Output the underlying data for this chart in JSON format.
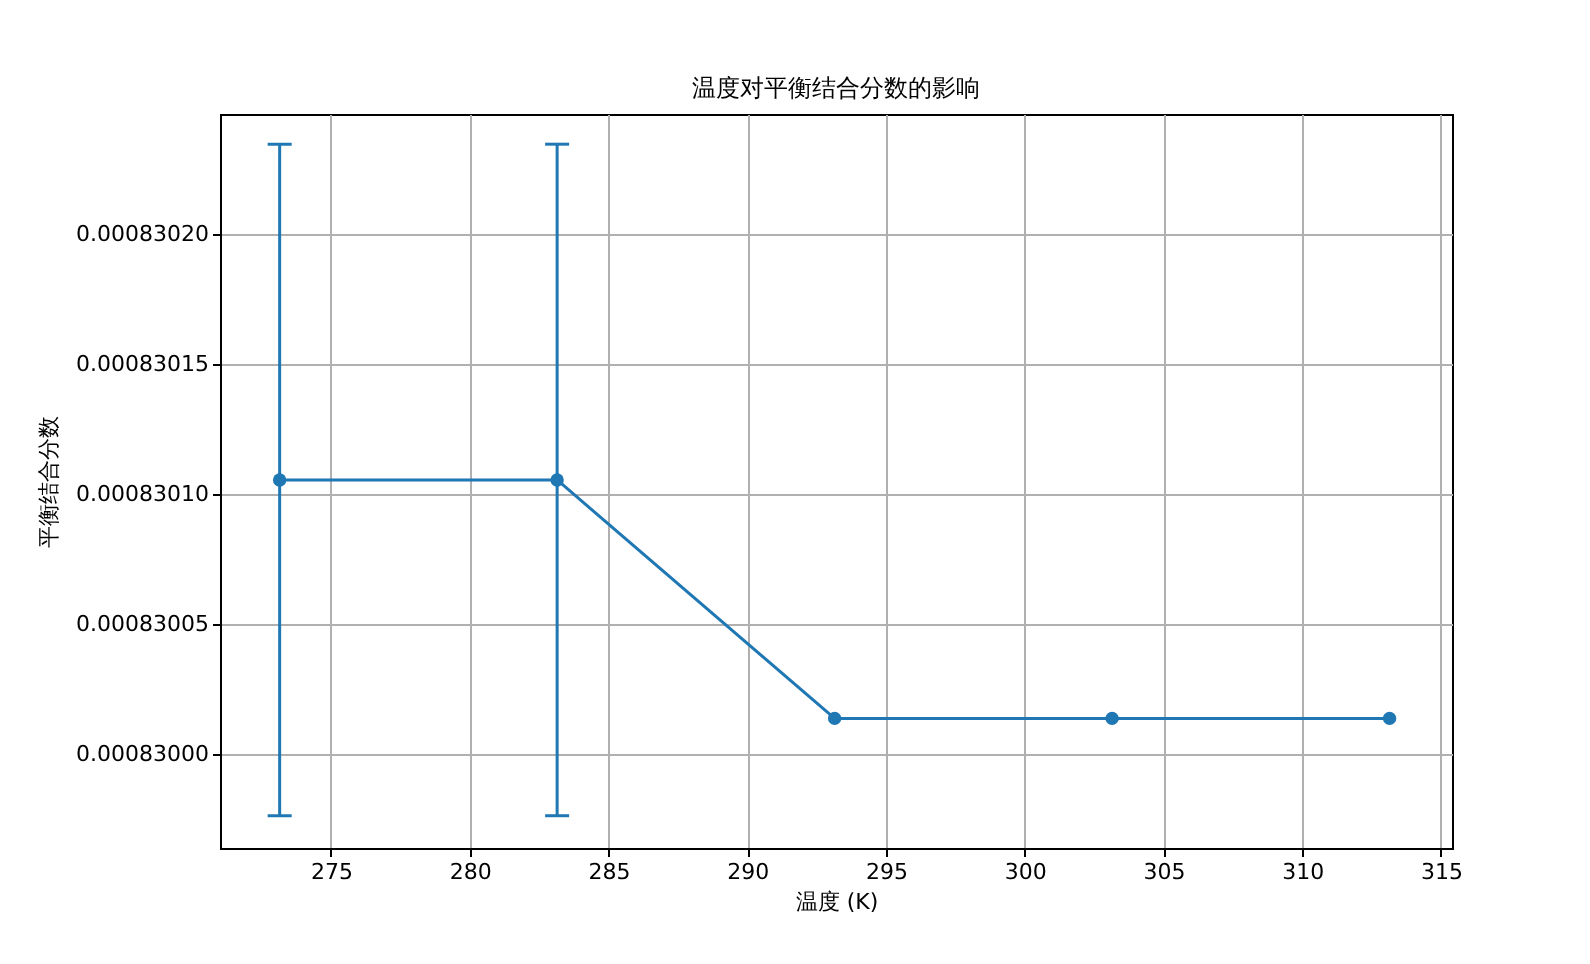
{
  "chart_data": {
    "type": "line",
    "title": "温度对平衡结合分数的影响",
    "xlabel": "温度 (K)",
    "ylabel": "平衡结合分数",
    "x": [
      273.15,
      283.15,
      293.15,
      303.15,
      313.15
    ],
    "series": [
      {
        "color": "#1f77b4",
        "values": [
          0.0008301054,
          0.0008301054,
          0.0008300138,
          0.0008300138,
          0.0008300138
        ],
        "errors": [
          1.29e-07,
          1.29e-07,
          null,
          null,
          null
        ]
      }
    ],
    "xlim": [
      271.0,
      315.4
    ],
    "xticks": [
      275,
      280,
      285,
      290,
      295,
      300,
      305,
      310,
      315
    ],
    "ylim": [
      0.000829964,
      0.000830246
    ],
    "yticks": [
      {
        "value": 0.00083,
        "label": "0.00083000"
      },
      {
        "value": 0.00083005,
        "label": "0.00083005"
      },
      {
        "value": 0.0008301,
        "label": "0.00083010"
      },
      {
        "value": 0.00083015,
        "label": "0.00083015"
      },
      {
        "value": 0.0008302,
        "label": "0.00083020"
      }
    ],
    "grid": true,
    "marker": "circle",
    "line_style": "solid"
  }
}
